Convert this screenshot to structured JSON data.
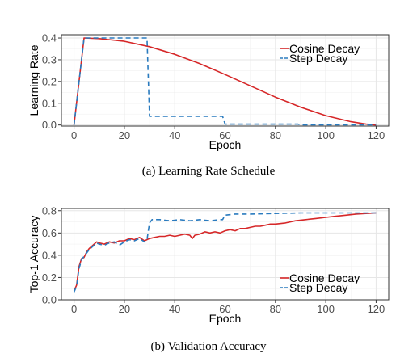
{
  "chart_data": [
    {
      "type": "line",
      "caption": "(a) Learning Rate Schedule",
      "xlabel": "Epoch",
      "ylabel": "Learning Rate",
      "xlim": [
        -5,
        125
      ],
      "ylim": [
        -0.005,
        0.415
      ],
      "xticks": [
        0,
        20,
        40,
        60,
        80,
        100,
        120
      ],
      "yticks": [
        0.0,
        0.1,
        0.2,
        0.3,
        0.4
      ],
      "ytick_labels": [
        "0.0",
        "0.1",
        "0.2",
        "0.3",
        "0.4"
      ],
      "grid": true,
      "legend_position": "top-right",
      "series": [
        {
          "name": "Cosine Decay",
          "color": "#d62728",
          "dash": "solid",
          "points": [
            [
              0,
              0.0
            ],
            [
              4,
              0.4
            ],
            [
              10,
              0.397
            ],
            [
              20,
              0.385
            ],
            [
              30,
              0.36
            ],
            [
              40,
              0.325
            ],
            [
              50,
              0.282
            ],
            [
              60,
              0.232
            ],
            [
              70,
              0.18
            ],
            [
              80,
              0.128
            ],
            [
              90,
              0.082
            ],
            [
              100,
              0.043
            ],
            [
              110,
              0.015
            ],
            [
              116,
              0.004
            ],
            [
              120,
              0.0
            ]
          ]
        },
        {
          "name": "Step Decay",
          "color": "#2a7bbf",
          "dash": "dashed",
          "points": [
            [
              0,
              0.0
            ],
            [
              4,
              0.4
            ],
            [
              29,
              0.4
            ],
            [
              30,
              0.04
            ],
            [
              59,
              0.04
            ],
            [
              60,
              0.004
            ],
            [
              89,
              0.004
            ],
            [
              90,
              0.0004
            ],
            [
              120,
              0.0004
            ]
          ]
        }
      ]
    },
    {
      "type": "line",
      "caption": "(b) Validation Accuracy",
      "xlabel": "Epoch",
      "ylabel": "Top-1 Accuracy",
      "xlim": [
        -5,
        125
      ],
      "ylim": [
        0.0,
        0.82
      ],
      "xticks": [
        0,
        20,
        40,
        60,
        80,
        100,
        120
      ],
      "yticks": [
        0.0,
        0.2,
        0.4,
        0.6,
        0.8
      ],
      "ytick_labels": [
        "0.0",
        "0.2",
        "0.4",
        "0.6",
        "0.8"
      ],
      "grid": true,
      "legend_position": "bottom-right",
      "series": [
        {
          "name": "Cosine Decay",
          "color": "#d62728",
          "dash": "solid",
          "points": [
            [
              0,
              0.08
            ],
            [
              1,
              0.13
            ],
            [
              2,
              0.3
            ],
            [
              3,
              0.37
            ],
            [
              4,
              0.38
            ],
            [
              5,
              0.43
            ],
            [
              6,
              0.46
            ],
            [
              7,
              0.48
            ],
            [
              8,
              0.5
            ],
            [
              9,
              0.52
            ],
            [
              10,
              0.51
            ],
            [
              12,
              0.5
            ],
            [
              14,
              0.52
            ],
            [
              16,
              0.51
            ],
            [
              18,
              0.53
            ],
            [
              20,
              0.53
            ],
            [
              22,
              0.55
            ],
            [
              24,
              0.54
            ],
            [
              26,
              0.56
            ],
            [
              28,
              0.53
            ],
            [
              30,
              0.55
            ],
            [
              32,
              0.56
            ],
            [
              34,
              0.57
            ],
            [
              36,
              0.57
            ],
            [
              38,
              0.58
            ],
            [
              40,
              0.57
            ],
            [
              42,
              0.58
            ],
            [
              44,
              0.59
            ],
            [
              46,
              0.58
            ],
            [
              47,
              0.55
            ],
            [
              48,
              0.58
            ],
            [
              50,
              0.59
            ],
            [
              52,
              0.61
            ],
            [
              54,
              0.6
            ],
            [
              56,
              0.61
            ],
            [
              58,
              0.6
            ],
            [
              60,
              0.62
            ],
            [
              62,
              0.63
            ],
            [
              64,
              0.62
            ],
            [
              66,
              0.64
            ],
            [
              68,
              0.64
            ],
            [
              70,
              0.65
            ],
            [
              72,
              0.66
            ],
            [
              74,
              0.66
            ],
            [
              76,
              0.67
            ],
            [
              78,
              0.68
            ],
            [
              80,
              0.68
            ],
            [
              84,
              0.69
            ],
            [
              88,
              0.71
            ],
            [
              92,
              0.72
            ],
            [
              96,
              0.73
            ],
            [
              100,
              0.74
            ],
            [
              104,
              0.75
            ],
            [
              108,
              0.76
            ],
            [
              112,
              0.77
            ],
            [
              116,
              0.775
            ],
            [
              120,
              0.78
            ]
          ]
        },
        {
          "name": "Step Decay",
          "color": "#2a7bbf",
          "dash": "dashed",
          "points": [
            [
              0,
              0.07
            ],
            [
              1,
              0.12
            ],
            [
              2,
              0.28
            ],
            [
              3,
              0.36
            ],
            [
              4,
              0.39
            ],
            [
              5,
              0.42
            ],
            [
              6,
              0.45
            ],
            [
              7,
              0.47
            ],
            [
              8,
              0.49
            ],
            [
              9,
              0.51
            ],
            [
              10,
              0.5
            ],
            [
              12,
              0.49
            ],
            [
              14,
              0.51
            ],
            [
              16,
              0.52
            ],
            [
              18,
              0.49
            ],
            [
              20,
              0.52
            ],
            [
              22,
              0.54
            ],
            [
              24,
              0.53
            ],
            [
              26,
              0.55
            ],
            [
              28,
              0.52
            ],
            [
              29,
              0.54
            ],
            [
              30,
              0.69
            ],
            [
              31,
              0.72
            ],
            [
              34,
              0.72
            ],
            [
              38,
              0.71
            ],
            [
              42,
              0.72
            ],
            [
              46,
              0.71
            ],
            [
              50,
              0.72
            ],
            [
              54,
              0.71
            ],
            [
              58,
              0.72
            ],
            [
              59,
              0.72
            ],
            [
              60,
              0.76
            ],
            [
              64,
              0.77
            ],
            [
              70,
              0.77
            ],
            [
              80,
              0.775
            ],
            [
              90,
              0.78
            ],
            [
              100,
              0.78
            ],
            [
              110,
              0.78
            ],
            [
              120,
              0.78
            ]
          ]
        }
      ]
    }
  ]
}
